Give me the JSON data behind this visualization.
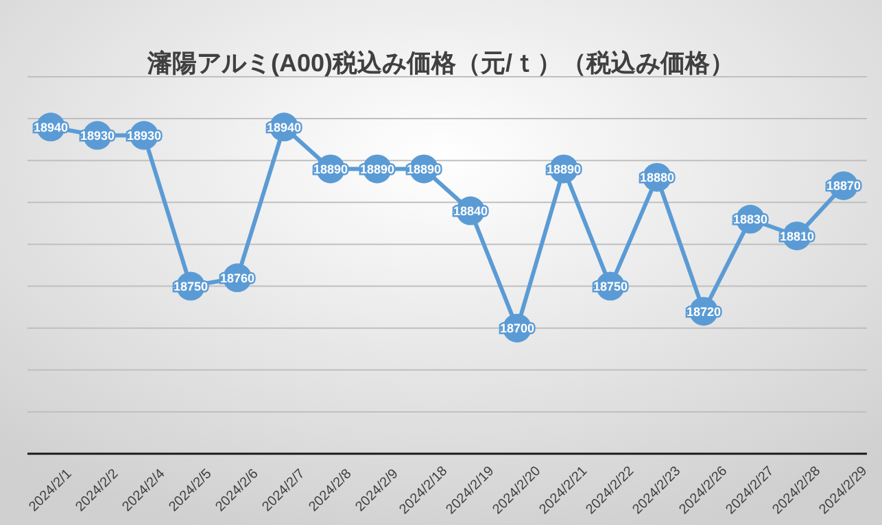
{
  "chart_data": {
    "type": "line",
    "title": "瀋陽アルミ(A00)税込み価格（元/ｔ）（税込み価格）",
    "categories": [
      "2024/2/1",
      "2024/2/2",
      "2024/2/4",
      "2024/2/5",
      "2024/2/6",
      "2024/2/7",
      "2024/2/8",
      "2024/2/9",
      "2024/2/18",
      "2024/2/19",
      "2024/2/20",
      "2024/2/21",
      "2024/2/22",
      "2024/2/23",
      "2024/2/26",
      "2024/2/27",
      "2024/2/28",
      "2024/2/29"
    ],
    "series": [
      {
        "color": "#5b9bd5",
        "values": [
          18940,
          18930,
          18930,
          18750,
          18760,
          18940,
          18890,
          18890,
          18890,
          18840,
          18700,
          18890,
          18750,
          18880,
          18720,
          18830,
          18810,
          18870
        ]
      }
    ],
    "ylim": [
      18550,
      19000
    ],
    "yticks": [
      {
        "value": 18550,
        "label": null
      },
      {
        "value": 18600,
        "label": null
      },
      {
        "value": 18650,
        "label": null
      },
      {
        "value": 18700,
        "label": null
      },
      {
        "value": 18750,
        "label": null
      },
      {
        "value": 18800,
        "label": null
      },
      {
        "value": 18850,
        "label": null
      },
      {
        "value": 18900,
        "label": null
      },
      {
        "value": 18950,
        "label": null
      },
      {
        "value": 19000,
        "label": null
      }
    ],
    "tick_labels": "x",
    "grid": "y",
    "marker": "circle",
    "line_style": "solid",
    "data_labels": true
  }
}
